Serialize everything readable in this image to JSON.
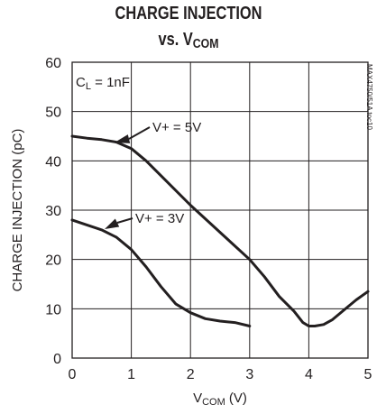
{
  "chart_data": {
    "type": "line",
    "title_line1": "CHARGE INJECTION",
    "title_line2_prefix": "vs. V",
    "title_line2_sub": "COM",
    "xlabel_main": "V",
    "xlabel_sub": "COM",
    "xlabel_unit": " (V)",
    "ylabel": "CHARGE INJECTION (pC)",
    "xlim": [
      0,
      5
    ],
    "ylim": [
      0,
      60
    ],
    "xticks": [
      "0",
      "1",
      "2",
      "3",
      "4",
      "5"
    ],
    "yticks": [
      "0",
      "10",
      "20",
      "30",
      "40",
      "50",
      "60"
    ],
    "grid": true,
    "condition_main": "C",
    "condition_sub": "L",
    "condition_rest": " = 1nF",
    "part_number": "MAX4750/51A toc10",
    "series": [
      {
        "name": "V+ = 5V",
        "x": [
          0,
          0.25,
          0.5,
          0.75,
          1.0,
          1.25,
          1.5,
          2.0,
          2.5,
          3.0,
          3.25,
          3.5,
          3.75,
          3.9,
          4.0,
          4.1,
          4.25,
          4.4,
          4.6,
          4.8,
          5.0
        ],
        "y": [
          45,
          44.6,
          44.3,
          43.8,
          42.5,
          40,
          37,
          31,
          25.5,
          20,
          16.5,
          12.5,
          9.5,
          7.2,
          6.5,
          6.5,
          6.8,
          7.8,
          9.8,
          11.8,
          13.5
        ]
      },
      {
        "name": "V+ = 3V",
        "x": [
          0,
          0.25,
          0.5,
          0.75,
          1.0,
          1.25,
          1.5,
          1.75,
          2.0,
          2.25,
          2.5,
          2.75,
          3.0
        ],
        "y": [
          28,
          27,
          26,
          24.5,
          22,
          18.5,
          14.5,
          11,
          9.2,
          8,
          7.5,
          7.2,
          6.5
        ]
      }
    ]
  }
}
